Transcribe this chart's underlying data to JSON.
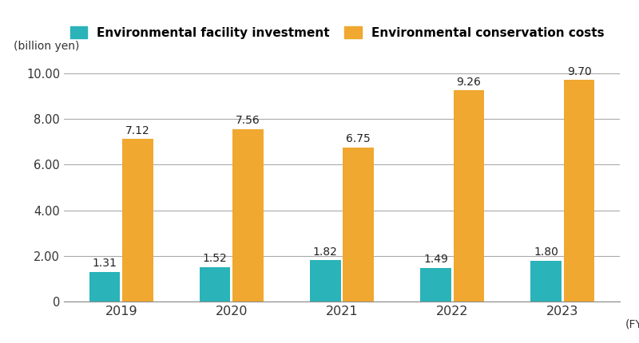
{
  "years": [
    "2019",
    "2020",
    "2021",
    "2022",
    "2023"
  ],
  "investment": [
    1.31,
    1.52,
    1.82,
    1.49,
    1.8
  ],
  "conservation": [
    7.12,
    7.56,
    6.75,
    9.26,
    9.7
  ],
  "investment_color": "#2ab3b8",
  "conservation_color": "#f0a830",
  "ylabel": "(billion yen)",
  "xlabel": "(FY)",
  "ylim": [
    0,
    10.5
  ],
  "yticks": [
    0,
    2.0,
    4.0,
    6.0,
    8.0,
    10.0
  ],
  "ytick_labels": [
    "0",
    "2.00",
    "4.00",
    "6.00",
    "8.00",
    "10.00"
  ],
  "legend_label_investment": "Environmental facility investment",
  "legend_label_conservation": "Environmental conservation costs",
  "bar_width": 0.28,
  "background_color": "#ffffff",
  "label_fontsize": 10,
  "tick_fontsize": 10.5,
  "legend_fontsize": 11,
  "value_fontsize": 10
}
